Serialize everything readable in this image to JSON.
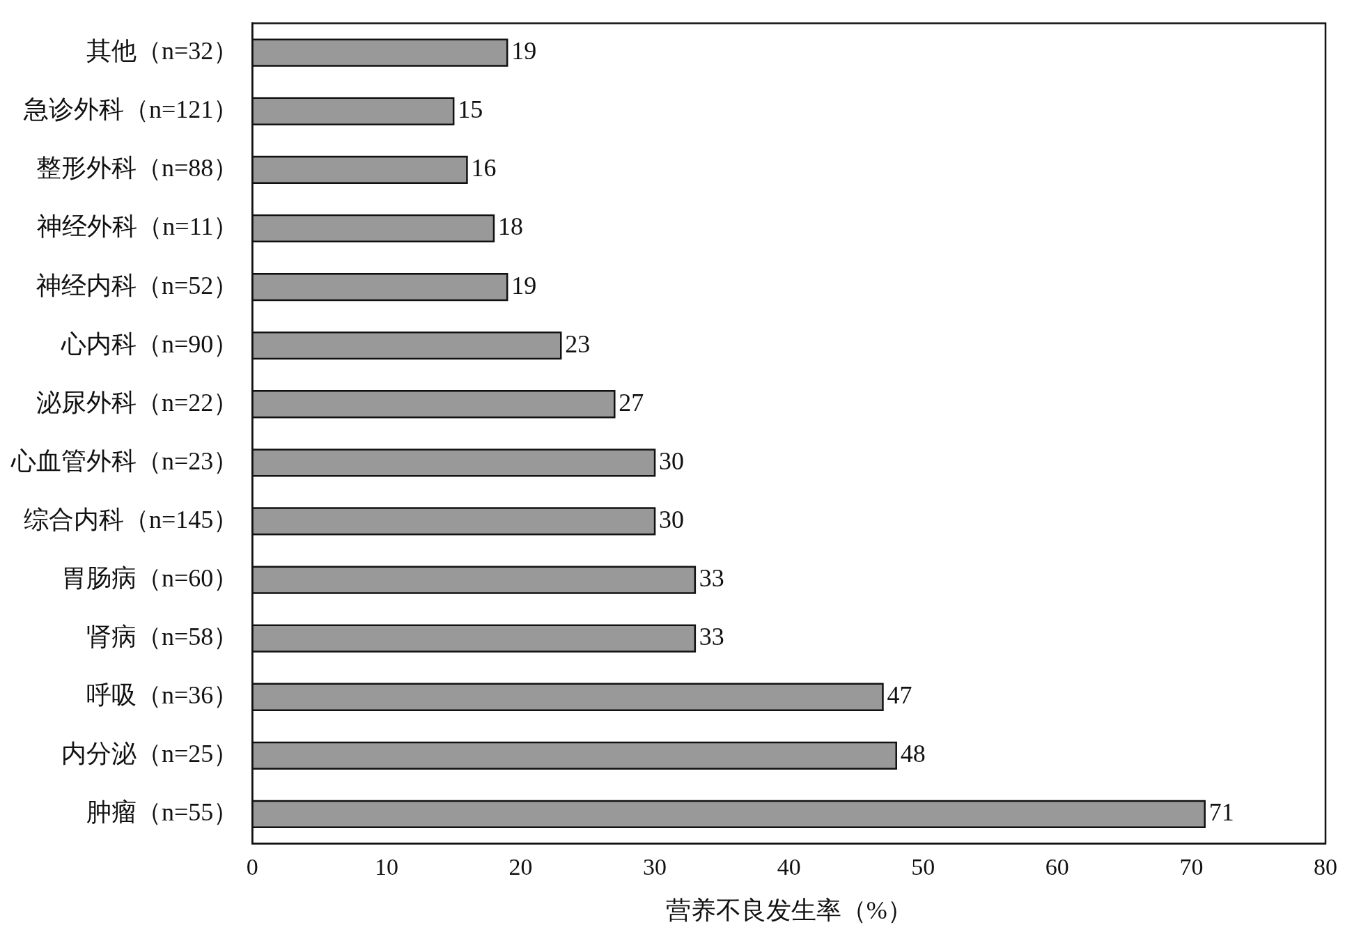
{
  "chart_data": {
    "type": "bar",
    "orientation": "horizontal",
    "xlabel": "营养不良发生率（%）",
    "categories": [
      "其他（n=32）",
      "急诊外科（n=121）",
      "整形外科（n=88）",
      "神经外科（n=11）",
      "神经内科（n=52）",
      "心内科（n=90）",
      "泌尿外科（n=22）",
      "心血管外科（n=23）",
      "综合内科（n=145）",
      "胃肠病（n=60）",
      "肾病（n=58）",
      "呼吸（n=36）",
      "内分泌（n=25）",
      "肿瘤（n=55）"
    ],
    "values": [
      19,
      15,
      16,
      18,
      19,
      23,
      27,
      30,
      30,
      33,
      33,
      47,
      48,
      71
    ],
    "color": "#999999",
    "xlim": [
      0,
      80
    ],
    "xticks": [
      0,
      10,
      20,
      30,
      40,
      50,
      60,
      70,
      80
    ],
    "grid": false,
    "legend": false,
    "data_labels": true
  }
}
